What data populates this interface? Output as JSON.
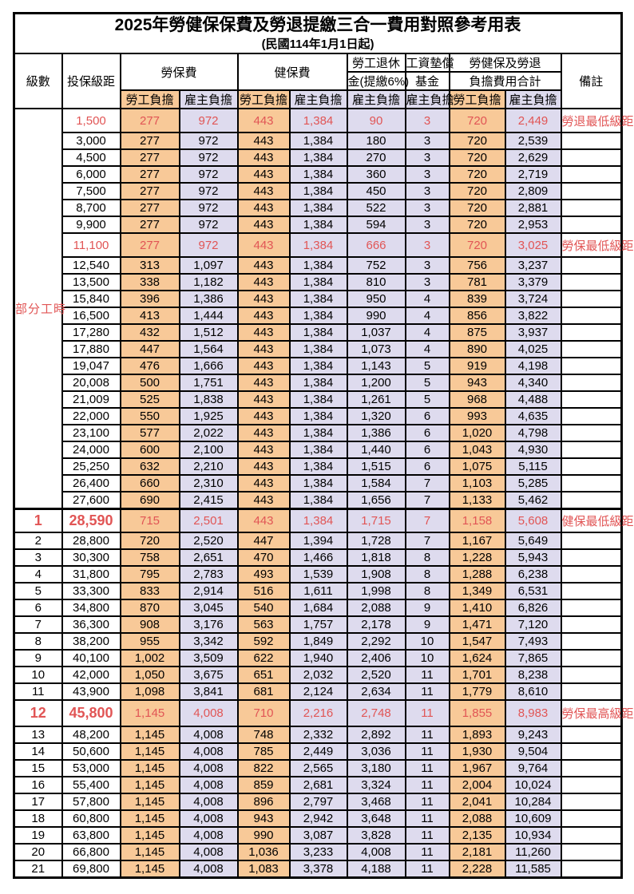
{
  "title": "2025年勞健保保費及勞退提繳三合一費用對照參考用表",
  "subtitle": "(民國114年1月1日起)",
  "header": {
    "level": "級數",
    "salary_bracket": "投保級距",
    "labor_insurance": "勞保費",
    "health_insurance": "健保費",
    "pension_line1": "勞工退休",
    "pension_line2": "金(提繳6%)",
    "wage_fund_line1": "工資墊償",
    "wage_fund_line2": "基金",
    "total_line1": "勞健保及勞退",
    "total_line2": "負擔費用合計",
    "remark": "備註",
    "employee_label": "勞工負擔",
    "employer_label": "雇主負擔"
  },
  "part_time_label": "部分工時",
  "colors": {
    "employee_bg": "#f8c998",
    "employer_bg": "#dedbee",
    "highlight_red": "#e15555",
    "border": "#000000"
  },
  "rows": [
    {
      "level": "",
      "salary": "1,500",
      "cells": [
        "277",
        "972",
        "443",
        "1,384",
        "90",
        "3",
        "720",
        "2,449"
      ],
      "remark": "勞退最低級距",
      "red": true,
      "big": false
    },
    {
      "level": "",
      "salary": "3,000",
      "cells": [
        "277",
        "972",
        "443",
        "1,384",
        "180",
        "3",
        "720",
        "2,539"
      ],
      "remark": "",
      "red": false,
      "big": false
    },
    {
      "level": "",
      "salary": "4,500",
      "cells": [
        "277",
        "972",
        "443",
        "1,384",
        "270",
        "3",
        "720",
        "2,629"
      ],
      "remark": "",
      "red": false,
      "big": false
    },
    {
      "level": "",
      "salary": "6,000",
      "cells": [
        "277",
        "972",
        "443",
        "1,384",
        "360",
        "3",
        "720",
        "2,719"
      ],
      "remark": "",
      "red": false,
      "big": false
    },
    {
      "level": "",
      "salary": "7,500",
      "cells": [
        "277",
        "972",
        "443",
        "1,384",
        "450",
        "3",
        "720",
        "2,809"
      ],
      "remark": "",
      "red": false,
      "big": false
    },
    {
      "level": "",
      "salary": "8,700",
      "cells": [
        "277",
        "972",
        "443",
        "1,384",
        "522",
        "3",
        "720",
        "2,881"
      ],
      "remark": "",
      "red": false,
      "big": false
    },
    {
      "level": "",
      "salary": "9,900",
      "cells": [
        "277",
        "972",
        "443",
        "1,384",
        "594",
        "3",
        "720",
        "2,953"
      ],
      "remark": "",
      "red": false,
      "big": false
    },
    {
      "level": "",
      "salary": "11,100",
      "cells": [
        "277",
        "972",
        "443",
        "1,384",
        "666",
        "3",
        "720",
        "3,025"
      ],
      "remark": "勞保最低級距",
      "red": true,
      "big": false
    },
    {
      "level": "",
      "salary": "12,540",
      "cells": [
        "313",
        "1,097",
        "443",
        "1,384",
        "752",
        "3",
        "756",
        "3,237"
      ],
      "remark": "",
      "red": false,
      "big": false
    },
    {
      "level": "",
      "salary": "13,500",
      "cells": [
        "338",
        "1,182",
        "443",
        "1,384",
        "810",
        "3",
        "781",
        "3,379"
      ],
      "remark": "",
      "red": false,
      "big": false
    },
    {
      "level": "",
      "salary": "15,840",
      "cells": [
        "396",
        "1,386",
        "443",
        "1,384",
        "950",
        "4",
        "839",
        "3,724"
      ],
      "remark": "",
      "red": false,
      "big": false
    },
    {
      "level": "",
      "salary": "16,500",
      "cells": [
        "413",
        "1,444",
        "443",
        "1,384",
        "990",
        "4",
        "856",
        "3,822"
      ],
      "remark": "",
      "red": false,
      "big": false
    },
    {
      "level": "",
      "salary": "17,280",
      "cells": [
        "432",
        "1,512",
        "443",
        "1,384",
        "1,037",
        "4",
        "875",
        "3,937"
      ],
      "remark": "",
      "red": false,
      "big": false
    },
    {
      "level": "",
      "salary": "17,880",
      "cells": [
        "447",
        "1,564",
        "443",
        "1,384",
        "1,073",
        "4",
        "890",
        "4,025"
      ],
      "remark": "",
      "red": false,
      "big": false
    },
    {
      "level": "",
      "salary": "19,047",
      "cells": [
        "476",
        "1,666",
        "443",
        "1,384",
        "1,143",
        "5",
        "919",
        "4,198"
      ],
      "remark": "",
      "red": false,
      "big": false
    },
    {
      "level": "",
      "salary": "20,008",
      "cells": [
        "500",
        "1,751",
        "443",
        "1,384",
        "1,200",
        "5",
        "943",
        "4,340"
      ],
      "remark": "",
      "red": false,
      "big": false
    },
    {
      "level": "",
      "salary": "21,009",
      "cells": [
        "525",
        "1,838",
        "443",
        "1,384",
        "1,261",
        "5",
        "968",
        "4,488"
      ],
      "remark": "",
      "red": false,
      "big": false
    },
    {
      "level": "",
      "salary": "22,000",
      "cells": [
        "550",
        "1,925",
        "443",
        "1,384",
        "1,320",
        "6",
        "993",
        "4,635"
      ],
      "remark": "",
      "red": false,
      "big": false
    },
    {
      "level": "",
      "salary": "23,100",
      "cells": [
        "577",
        "2,022",
        "443",
        "1,384",
        "1,386",
        "6",
        "1,020",
        "4,798"
      ],
      "remark": "",
      "red": false,
      "big": false
    },
    {
      "level": "",
      "salary": "24,000",
      "cells": [
        "600",
        "2,100",
        "443",
        "1,384",
        "1,440",
        "6",
        "1,043",
        "4,930"
      ],
      "remark": "",
      "red": false,
      "big": false
    },
    {
      "level": "",
      "salary": "25,250",
      "cells": [
        "632",
        "2,210",
        "443",
        "1,384",
        "1,515",
        "6",
        "1,075",
        "5,115"
      ],
      "remark": "",
      "red": false,
      "big": false
    },
    {
      "level": "",
      "salary": "26,400",
      "cells": [
        "660",
        "2,310",
        "443",
        "1,384",
        "1,584",
        "7",
        "1,103",
        "5,285"
      ],
      "remark": "",
      "red": false,
      "big": false
    },
    {
      "level": "",
      "salary": "27,600",
      "cells": [
        "690",
        "2,415",
        "443",
        "1,384",
        "1,656",
        "7",
        "1,133",
        "5,462"
      ],
      "remark": "",
      "red": false,
      "big": false
    },
    {
      "level": "1",
      "salary": "28,590",
      "cells": [
        "715",
        "2,501",
        "443",
        "1,384",
        "1,715",
        "7",
        "1,158",
        "5,608"
      ],
      "remark": "健保最低級距",
      "red": true,
      "big": true,
      "thickTop": true
    },
    {
      "level": "2",
      "salary": "28,800",
      "cells": [
        "720",
        "2,520",
        "447",
        "1,394",
        "1,728",
        "7",
        "1,167",
        "5,649"
      ],
      "remark": "",
      "red": false,
      "big": false
    },
    {
      "level": "3",
      "salary": "30,300",
      "cells": [
        "758",
        "2,651",
        "470",
        "1,466",
        "1,818",
        "8",
        "1,228",
        "5,943"
      ],
      "remark": "",
      "red": false,
      "big": false
    },
    {
      "level": "4",
      "salary": "31,800",
      "cells": [
        "795",
        "2,783",
        "493",
        "1,539",
        "1,908",
        "8",
        "1,288",
        "6,238"
      ],
      "remark": "",
      "red": false,
      "big": false
    },
    {
      "level": "5",
      "salary": "33,300",
      "cells": [
        "833",
        "2,914",
        "516",
        "1,611",
        "1,998",
        "8",
        "1,349",
        "6,531"
      ],
      "remark": "",
      "red": false,
      "big": false
    },
    {
      "level": "6",
      "salary": "34,800",
      "cells": [
        "870",
        "3,045",
        "540",
        "1,684",
        "2,088",
        "9",
        "1,410",
        "6,826"
      ],
      "remark": "",
      "red": false,
      "big": false
    },
    {
      "level": "7",
      "salary": "36,300",
      "cells": [
        "908",
        "3,176",
        "563",
        "1,757",
        "2,178",
        "9",
        "1,471",
        "7,120"
      ],
      "remark": "",
      "red": false,
      "big": false
    },
    {
      "level": "8",
      "salary": "38,200",
      "cells": [
        "955",
        "3,342",
        "592",
        "1,849",
        "2,292",
        "10",
        "1,547",
        "7,493"
      ],
      "remark": "",
      "red": false,
      "big": false
    },
    {
      "level": "9",
      "salary": "40,100",
      "cells": [
        "1,002",
        "3,509",
        "622",
        "1,940",
        "2,406",
        "10",
        "1,624",
        "7,865"
      ],
      "remark": "",
      "red": false,
      "big": false
    },
    {
      "level": "10",
      "salary": "42,000",
      "cells": [
        "1,050",
        "3,675",
        "651",
        "2,032",
        "2,520",
        "11",
        "1,701",
        "8,238"
      ],
      "remark": "",
      "red": false,
      "big": false
    },
    {
      "level": "11",
      "salary": "43,900",
      "cells": [
        "1,098",
        "3,841",
        "681",
        "2,124",
        "2,634",
        "11",
        "1,779",
        "8,610"
      ],
      "remark": "",
      "red": false,
      "big": false
    },
    {
      "level": "12",
      "salary": "45,800",
      "cells": [
        "1,145",
        "4,008",
        "710",
        "2,216",
        "2,748",
        "11",
        "1,855",
        "8,983"
      ],
      "remark": "勞保最高級距",
      "red": true,
      "big": true,
      "biggest": true
    },
    {
      "level": "13",
      "salary": "48,200",
      "cells": [
        "1,145",
        "4,008",
        "748",
        "2,332",
        "2,892",
        "11",
        "1,893",
        "9,243"
      ],
      "remark": "",
      "red": false,
      "big": false
    },
    {
      "level": "14",
      "salary": "50,600",
      "cells": [
        "1,145",
        "4,008",
        "785",
        "2,449",
        "3,036",
        "11",
        "1,930",
        "9,504"
      ],
      "remark": "",
      "red": false,
      "big": false
    },
    {
      "level": "15",
      "salary": "53,000",
      "cells": [
        "1,145",
        "4,008",
        "822",
        "2,565",
        "3,180",
        "11",
        "1,967",
        "9,764"
      ],
      "remark": "",
      "red": false,
      "big": false
    },
    {
      "level": "16",
      "salary": "55,400",
      "cells": [
        "1,145",
        "4,008",
        "859",
        "2,681",
        "3,324",
        "11",
        "2,004",
        "10,024"
      ],
      "remark": "",
      "red": false,
      "big": false
    },
    {
      "level": "17",
      "salary": "57,800",
      "cells": [
        "1,145",
        "4,008",
        "896",
        "2,797",
        "3,468",
        "11",
        "2,041",
        "10,284"
      ],
      "remark": "",
      "red": false,
      "big": false
    },
    {
      "level": "18",
      "salary": "60,800",
      "cells": [
        "1,145",
        "4,008",
        "943",
        "2,942",
        "3,648",
        "11",
        "2,088",
        "10,609"
      ],
      "remark": "",
      "red": false,
      "big": false
    },
    {
      "level": "19",
      "salary": "63,800",
      "cells": [
        "1,145",
        "4,008",
        "990",
        "3,087",
        "3,828",
        "11",
        "2,135",
        "10,934"
      ],
      "remark": "",
      "red": false,
      "big": false
    },
    {
      "level": "20",
      "salary": "66,800",
      "cells": [
        "1,145",
        "4,008",
        "1,036",
        "3,233",
        "4,008",
        "11",
        "2,181",
        "11,260"
      ],
      "remark": "",
      "red": false,
      "big": false
    },
    {
      "level": "21",
      "salary": "69,800",
      "cells": [
        "1,145",
        "4,008",
        "1,083",
        "3,378",
        "4,188",
        "11",
        "2,228",
        "11,585"
      ],
      "remark": "",
      "red": false,
      "big": false
    }
  ],
  "part_time_row_count": 23
}
